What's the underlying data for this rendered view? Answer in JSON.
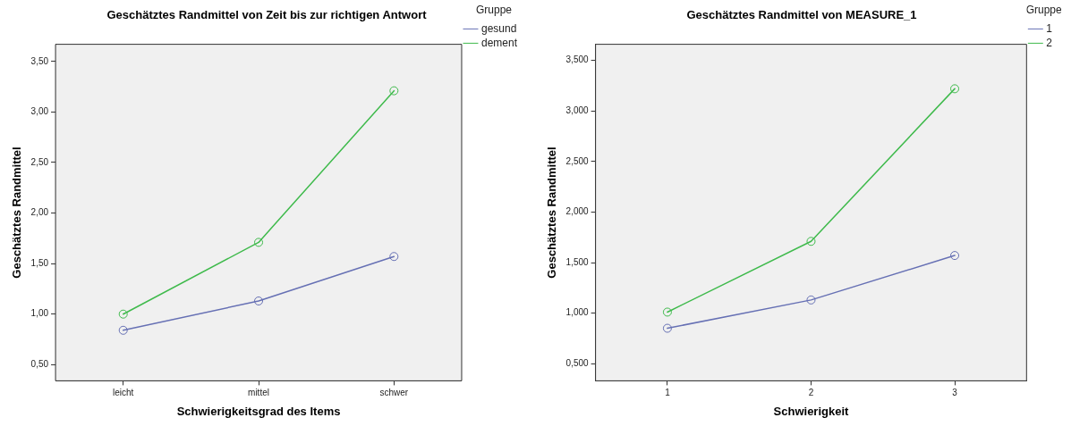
{
  "chart_data": [
    {
      "type": "line",
      "title": "Geschätztes Randmittel von Zeit bis zur richtigen Antwort",
      "xlabel": "Schwierigkeitsgrad des Items",
      "ylabel": "Geschätztes Randmittel",
      "legend_title": "Gruppe",
      "legend": "top right",
      "grid": false,
      "marker": "circle",
      "line_style": "solid",
      "categories": [
        "leicht",
        "mittel",
        "schwer"
      ],
      "series": [
        {
          "name": "gesund",
          "color": "#6670b4",
          "values": [
            0.84,
            1.13,
            1.57
          ]
        },
        {
          "name": "dement",
          "color": "#3fba4c",
          "values": [
            1.0,
            1.71,
            3.21
          ]
        }
      ],
      "ylim": [
        0.34,
        3.67
      ],
      "yticks": [
        {
          "value": 0.5,
          "label": "0,50"
        },
        {
          "value": 1,
          "label": "1,00"
        },
        {
          "value": 1.5,
          "label": "1,50"
        },
        {
          "value": 2,
          "label": "2,00"
        },
        {
          "value": 2.5,
          "label": "2,50"
        },
        {
          "value": 3,
          "label": "3,00"
        },
        {
          "value": 3.5,
          "label": "3,50"
        }
      ]
    },
    {
      "type": "line",
      "title": "Geschätztes Randmittel von MEASURE_1",
      "xlabel": "Schwierigkeit",
      "ylabel": "Geschätztes Randmittel",
      "legend_title": "Gruppe",
      "legend": "top right",
      "grid": false,
      "marker": "circle",
      "line_style": "solid",
      "categories": [
        "1",
        "2",
        "3"
      ],
      "series": [
        {
          "name": "1",
          "color": "#6670b4",
          "values": [
            0.85,
            1.13,
            1.57
          ]
        },
        {
          "name": "2",
          "color": "#3fba4c",
          "values": [
            1.01,
            1.71,
            3.22
          ]
        }
      ],
      "ylim": [
        0.33,
        3.66
      ],
      "yticks": [
        {
          "value": 0.5,
          "label": "0,500"
        },
        {
          "value": 1,
          "label": "1,000"
        },
        {
          "value": 1.5,
          "label": "1,500"
        },
        {
          "value": 2,
          "label": "2,000"
        },
        {
          "value": 2.5,
          "label": "2,500"
        },
        {
          "value": 3,
          "label": "3,000"
        },
        {
          "value": 3.5,
          "label": "3,500"
        }
      ]
    }
  ]
}
